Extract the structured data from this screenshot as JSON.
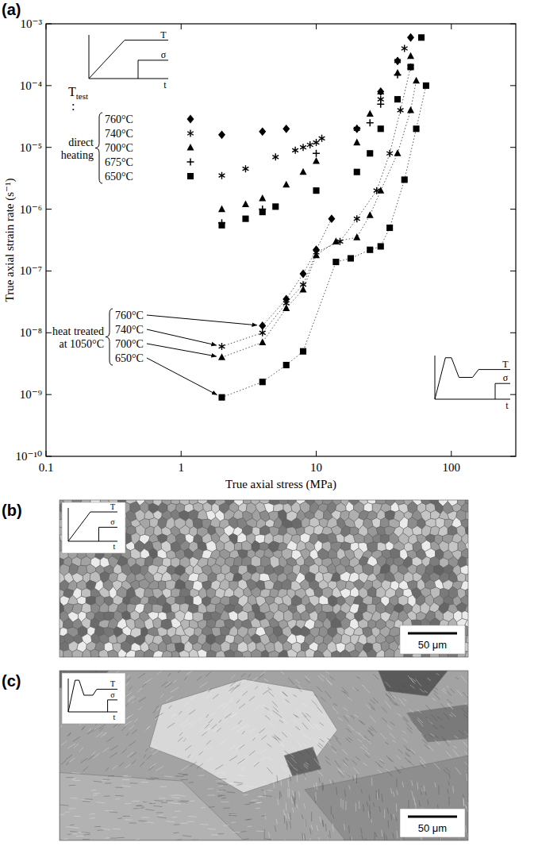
{
  "chart_data": {
    "type": "scatter",
    "panel_letter": "(a)",
    "x_label": "True axial stress (MPa)",
    "y_label": "True axial strain rate (s⁻¹)",
    "log": true,
    "grid": false,
    "xlim": [
      0.1,
      300
    ],
    "ylim": [
      1e-10,
      0.001
    ],
    "xticks": [
      0.1,
      1,
      10,
      100
    ],
    "yticks": [
      {
        "value": 1e-10,
        "label": "10⁻¹⁰"
      },
      {
        "value": 1e-09,
        "label": "10⁻⁹"
      },
      {
        "value": 1e-08,
        "label": "10⁻⁸"
      },
      {
        "value": 1e-07,
        "label": "10⁻⁷"
      },
      {
        "value": 1e-06,
        "label": "10⁻⁶"
      },
      {
        "value": 1e-05,
        "label": "10⁻⁵"
      },
      {
        "value": 0.0001,
        "label": "10⁻⁴"
      },
      {
        "value": 0.001,
        "label": "10⁻³"
      }
    ],
    "legend_title": {
      "text": "T",
      "subscript": "test",
      "separator": ":"
    },
    "groups": [
      {
        "label_lines": [
          "direct",
          "heating"
        ]
      },
      {
        "label_lines": [
          "heat treated",
          "at 1050°C"
        ]
      }
    ],
    "series": [
      {
        "name": "760°C",
        "group": 0,
        "marker": "diamond",
        "color": "#000000",
        "line_style": "none",
        "x": [
          2,
          4,
          6,
          20,
          30,
          40,
          50
        ],
        "values": [
          1.6e-05,
          1.8e-05,
          2e-05,
          2e-05,
          8e-05,
          0.00025,
          0.0006
        ]
      },
      {
        "name": "740°C",
        "group": 0,
        "marker": "asterisk",
        "color": "#000000",
        "line_style": "none",
        "x": [
          2,
          3,
          5,
          7,
          8,
          9,
          10,
          11,
          20,
          30,
          40,
          45
        ],
        "values": [
          3.5e-06,
          4.5e-06,
          7e-06,
          9e-06,
          1e-05,
          1.1e-05,
          1.2e-05,
          1.4e-05,
          2e-05,
          6e-05,
          0.00025,
          0.0004
        ]
      },
      {
        "name": "700°C",
        "group": 0,
        "marker": "triangle",
        "color": "#000000",
        "line_style": "none",
        "x": [
          2,
          3,
          4,
          6,
          8,
          10,
          20,
          25,
          30,
          40,
          50
        ],
        "values": [
          1e-06,
          1.2e-06,
          1.5e-06,
          2.5e-06,
          4e-06,
          6e-06,
          1.2e-05,
          3.5e-05,
          8e-05,
          0.00016,
          0.0003
        ]
      },
      {
        "name": "675°C",
        "group": 0,
        "marker": "plus",
        "color": "#000000",
        "line_style": "none",
        "x": [
          2,
          4,
          10,
          20,
          25,
          30,
          40
        ],
        "values": [
          6e-07,
          1e-06,
          8e-06,
          2e-05,
          2.5e-05,
          5e-05,
          0.00015
        ]
      },
      {
        "name": "650°C",
        "group": 0,
        "marker": "square",
        "color": "#000000",
        "line_style": "none",
        "x": [
          2,
          3,
          4,
          5,
          10,
          20,
          25,
          30,
          40,
          50,
          60
        ],
        "values": [
          5.5e-07,
          7e-07,
          9e-07,
          1.1e-06,
          2e-06,
          4e-06,
          8e-06,
          2e-05,
          6e-05,
          0.0002,
          0.0006
        ]
      },
      {
        "name": "760°C",
        "group": 1,
        "marker": "diamond",
        "color": "#000000",
        "line_style": "dotted",
        "x": [
          4,
          6,
          8,
          10,
          13
        ],
        "values": [
          1.3e-08,
          3.5e-08,
          9e-08,
          2.2e-07,
          7e-07
        ]
      },
      {
        "name": "740°C",
        "group": 1,
        "marker": "asterisk",
        "color": "#000000",
        "line_style": "dotted",
        "x": [
          2,
          4,
          6,
          8,
          10,
          15,
          20,
          28,
          35,
          42,
          50
        ],
        "values": [
          6e-09,
          1e-08,
          3e-08,
          6e-08,
          2e-07,
          3e-07,
          7e-07,
          2e-06,
          8e-06,
          4e-05,
          0.0002
        ]
      },
      {
        "name": "700°C",
        "group": 1,
        "marker": "triangle",
        "color": "#000000",
        "line_style": "dotted",
        "x": [
          2,
          4,
          6,
          8,
          10,
          14,
          20,
          25,
          30,
          40,
          50,
          55
        ],
        "values": [
          4e-09,
          7e-09,
          2.5e-08,
          5e-08,
          1.8e-07,
          3e-07,
          3.5e-07,
          8e-07,
          2e-06,
          8e-06,
          4e-05,
          0.00012
        ]
      },
      {
        "name": "650°C",
        "group": 1,
        "marker": "square",
        "color": "#000000",
        "line_style": "dotted",
        "x": [
          2,
          4,
          6,
          8,
          14,
          18,
          25,
          30,
          35,
          45,
          55,
          65
        ],
        "values": [
          9e-10,
          1.6e-09,
          3e-09,
          5e-09,
          1.4e-07,
          1.6e-07,
          2.2e-07,
          2.5e-07,
          5e-07,
          3e-06,
          2e-05,
          0.0001
        ]
      }
    ]
  },
  "insets": {
    "temperature": "T",
    "stress": "σ",
    "time": "t"
  },
  "micrographs": [
    {
      "letter": "(b)",
      "scale_bar": "50 μm"
    },
    {
      "letter": "(c)",
      "scale_bar": "50 μm"
    }
  ]
}
